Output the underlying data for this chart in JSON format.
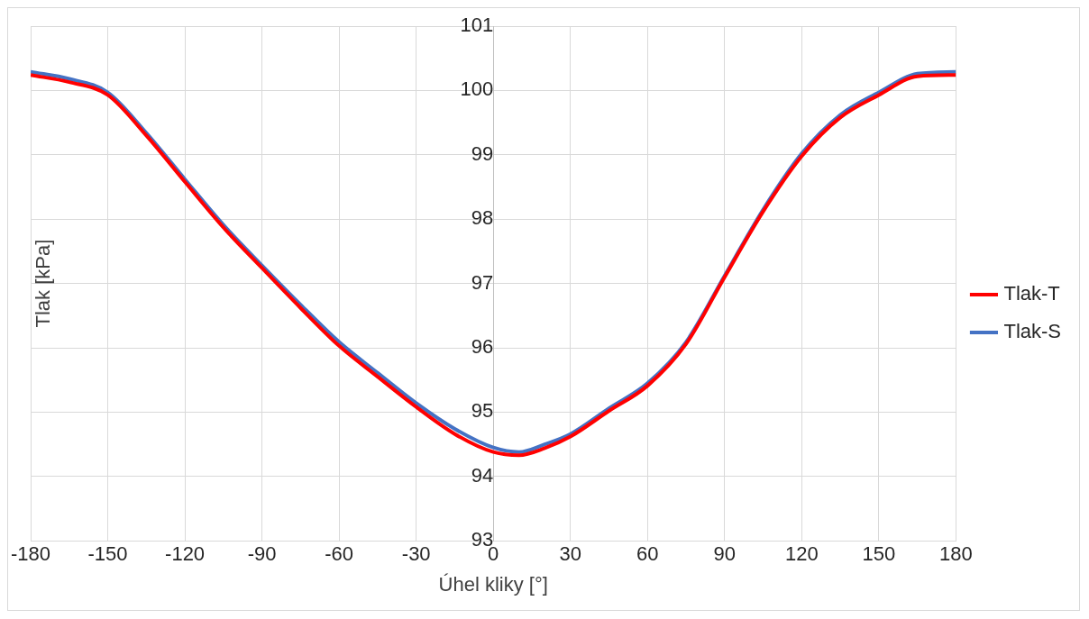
{
  "chart_data": {
    "type": "line",
    "xlabel": "Úhel kliky [°]",
    "ylabel": "Tlak [kPa]",
    "x": [
      -180,
      -165,
      -150,
      -135,
      -120,
      -105,
      -90,
      -75,
      -60,
      -45,
      -30,
      -15,
      0,
      10,
      20,
      30,
      45,
      60,
      75,
      90,
      105,
      120,
      135,
      150,
      165,
      180
    ],
    "series": [
      {
        "name": "Tlak-T",
        "color": "#ff0000",
        "values": [
          100.24,
          100.13,
          99.93,
          99.3,
          98.58,
          97.87,
          97.24,
          96.62,
          96.03,
          95.55,
          95.08,
          94.66,
          94.38,
          94.33,
          94.44,
          94.62,
          95.02,
          95.41,
          96.06,
          97.1,
          98.12,
          98.98,
          99.58,
          99.93,
          100.22,
          100.24
        ]
      },
      {
        "name": "Tlak-S",
        "color": "#4472c4",
        "values": [
          100.29,
          100.18,
          99.97,
          99.34,
          98.62,
          97.91,
          97.28,
          96.67,
          96.09,
          95.61,
          95.14,
          94.74,
          94.45,
          94.38,
          94.5,
          94.66,
          95.06,
          95.45,
          96.09,
          97.12,
          98.15,
          99.02,
          99.62,
          99.97,
          100.26,
          100.29
        ]
      }
    ],
    "xlim": [
      -180,
      180
    ],
    "xticks": [
      -180,
      -150,
      -120,
      -90,
      -60,
      -30,
      0,
      30,
      60,
      90,
      120,
      150,
      180
    ],
    "ylim": [
      93,
      101
    ],
    "yticks": [
      93,
      94,
      95,
      96,
      97,
      98,
      99,
      100,
      101
    ],
    "grid": true,
    "legend": "right",
    "marker": "none",
    "line_style": "solid"
  }
}
